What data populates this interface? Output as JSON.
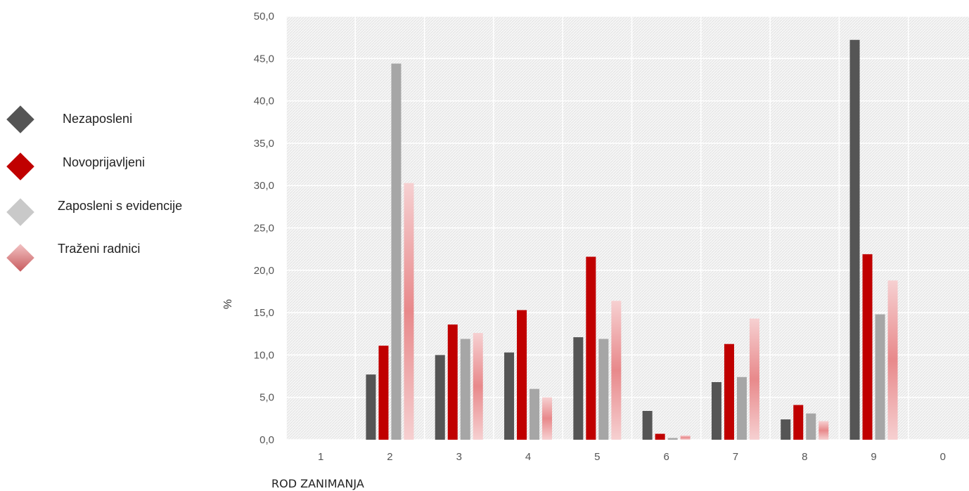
{
  "chart_data": {
    "type": "bar",
    "title": "",
    "xlabel": "ROD ZANIMANJA",
    "ylabel": "%",
    "ylim": [
      0,
      50
    ],
    "yticks": [
      "0,0",
      "5,0",
      "10,0",
      "15,0",
      "20,0",
      "25,0",
      "30,0",
      "35,0",
      "40,0",
      "45,0",
      "50,0"
    ],
    "categories": [
      "1",
      "2",
      "3",
      "4",
      "5",
      "6",
      "7",
      "8",
      "9",
      "0"
    ],
    "grid": true,
    "legend_position": "left",
    "series": [
      {
        "name": "Nezaposleni",
        "color": "#555555",
        "values": [
          0,
          7.7,
          10.0,
          10.3,
          12.1,
          3.4,
          6.8,
          2.4,
          47.2,
          0
        ]
      },
      {
        "name": "Novoprijavljeni",
        "color": "#c00000",
        "values": [
          0,
          11.1,
          13.6,
          15.3,
          21.6,
          0.7,
          11.3,
          4.1,
          21.9,
          0
        ]
      },
      {
        "name": "Zaposleni s evidencije",
        "color": "#a6a6a6",
        "values": [
          0,
          44.4,
          11.9,
          6.0,
          11.9,
          0.2,
          7.4,
          3.1,
          14.8,
          0
        ]
      },
      {
        "name": "Traženi radnici",
        "color": "#e8898b",
        "values": [
          0,
          30.3,
          12.6,
          5.0,
          16.4,
          0.5,
          14.3,
          2.2,
          18.8,
          0
        ]
      }
    ]
  }
}
